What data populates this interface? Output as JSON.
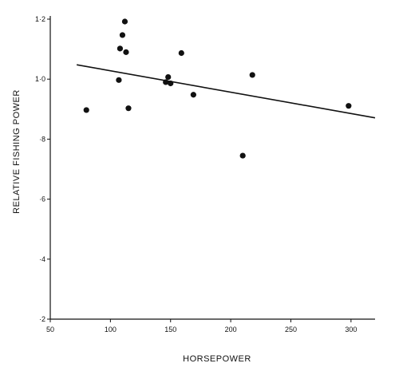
{
  "chart_data": {
    "type": "scatter",
    "title": "",
    "xlabel": "HORSEPOWER",
    "ylabel": "RELATIVE  FISHING  POWER",
    "xlim": [
      50,
      320
    ],
    "ylim": [
      0.2,
      1.2
    ],
    "x_ticks": [
      50,
      100,
      150,
      200,
      250,
      300
    ],
    "x_tick_labels": [
      "50",
      "100",
      "150",
      "200",
      "250",
      "300"
    ],
    "y_ticks": [
      0.2,
      0.4,
      0.6,
      0.8,
      1.0,
      1.2
    ],
    "y_tick_labels": [
      "·2",
      "·4",
      "·6",
      "·8",
      "1·0",
      "1·2"
    ],
    "grid": false,
    "points": [
      {
        "x": 80,
        "y": 0.897
      },
      {
        "x": 107,
        "y": 0.997
      },
      {
        "x": 108,
        "y": 1.102
      },
      {
        "x": 110,
        "y": 1.147
      },
      {
        "x": 112,
        "y": 1.192
      },
      {
        "x": 113,
        "y": 1.09
      },
      {
        "x": 115,
        "y": 0.903
      },
      {
        "x": 146,
        "y": 0.99
      },
      {
        "x": 148,
        "y": 1.007
      },
      {
        "x": 150,
        "y": 0.986
      },
      {
        "x": 159,
        "y": 1.087
      },
      {
        "x": 169,
        "y": 0.948
      },
      {
        "x": 210,
        "y": 0.745
      },
      {
        "x": 218,
        "y": 1.014
      },
      {
        "x": 298,
        "y": 0.911
      }
    ],
    "trend_line": {
      "x": [
        72,
        320
      ],
      "y": [
        1.048,
        0.871
      ]
    },
    "colors": {
      "marks": "#111111",
      "axis": "#111111"
    }
  }
}
